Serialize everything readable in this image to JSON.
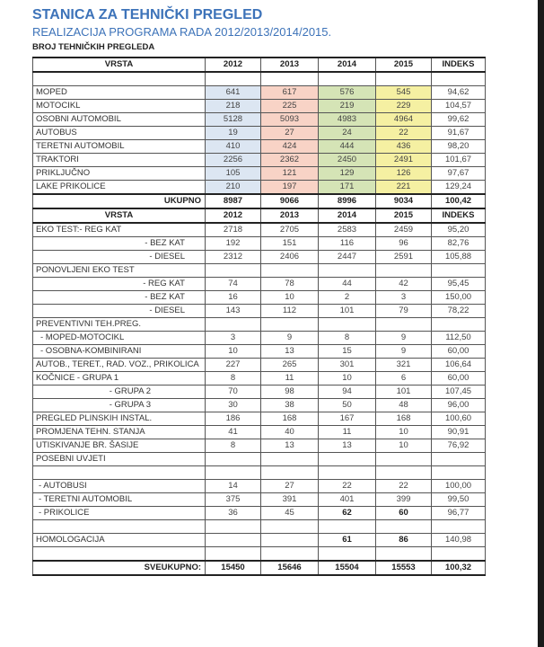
{
  "title": "STANICA ZA TEHNIČKI PREGLED",
  "subtitle": "REALIZACIJA PROGRAMA RADA 2012/2013/2014/2015.",
  "section": "BROJ TEHNIČKIH PREGLEDA",
  "table": {
    "rows": [
      [
        "VRSTA",
        "2012",
        "2013",
        "2014",
        "2015",
        "INDEKS"
      ],
      [
        null,
        null,
        null,
        null,
        null,
        null
      ],
      [
        "MOPED",
        "641",
        "617",
        "576",
        "545",
        "94,62"
      ],
      [
        "MOTOCIKL",
        "218",
        "225",
        "219",
        "229",
        "104,57"
      ],
      [
        "OSOBNI AUTOMOBIL",
        "5128",
        "5093",
        "4983",
        "4964",
        "99,62"
      ],
      [
        "AUTOBUS",
        "19",
        "27",
        "24",
        "22",
        "91,67"
      ],
      [
        "TERETNI AUTOMOBIL",
        "410",
        "424",
        "444",
        "436",
        "98,20"
      ],
      [
        "TRAKTORI",
        "2256",
        "2362",
        "2450",
        "2491",
        "101,67"
      ],
      [
        "PRIKLJUČNO",
        "105",
        "121",
        "129",
        "126",
        "97,67"
      ],
      [
        "LAKE PRIKOLICE",
        "210",
        "197",
        "171",
        "221",
        "129,24"
      ],
      [
        "UKUPNO",
        "8987",
        "9066",
        "8996",
        "9034",
        "100,42"
      ],
      [
        "VRSTA",
        "2012",
        "2013",
        "2014",
        "2015",
        "INDEKS"
      ],
      [
        "EKO TEST:- REG KAT",
        "2718",
        "2705",
        "2583",
        "2459",
        "95,20"
      ],
      [
        "- BEZ KAT",
        "192",
        "151",
        "116",
        "96",
        "82,76"
      ],
      [
        "- DIESEL",
        "2312",
        "2406",
        "2447",
        "2591",
        "105,88"
      ],
      [
        "PONOVLJENI EKO TEST",
        null,
        null,
        null,
        null,
        null
      ],
      [
        "- REG KAT",
        "74",
        "78",
        "44",
        "42",
        "95,45"
      ],
      [
        "- BEZ KAT",
        "16",
        "10",
        "2",
        "3",
        "150,00"
      ],
      [
        "- DIESEL",
        "143",
        "112",
        "101",
        "79",
        "78,22"
      ],
      [
        "PREVENTIVNI TEH.PREG.",
        null,
        null,
        null,
        null,
        null
      ],
      [
        "- MOPED-MOTOCIKL",
        "3",
        "9",
        "8",
        "9",
        "112,50"
      ],
      [
        "- OSOBNA-KOMBINIRANI",
        "10",
        "13",
        "15",
        "9",
        "60,00"
      ],
      [
        "AUTOB., TERET., RAD. VOZ., PRIKOLICA",
        "227",
        "265",
        "301",
        "321",
        "106,64"
      ],
      [
        "KOČNICE - GRUPA 1",
        "8",
        "11",
        "10",
        "6",
        "60,00"
      ],
      [
        "- GRUPA 2",
        "70",
        "98",
        "94",
        "101",
        "107,45"
      ],
      [
        "- GRUPA 3",
        "30",
        "38",
        "50",
        "48",
        "96,00"
      ],
      [
        "PREGLED PLINSKIH INSTAL.",
        "186",
        "168",
        "167",
        "168",
        "100,60"
      ],
      [
        "PROMJENA TEHN. STANJA",
        "41",
        "40",
        "11",
        "10",
        "90,91"
      ],
      [
        "UTISKIVANJE BR. ŠASIJE",
        "8",
        "13",
        "13",
        "10",
        "76,92"
      ],
      [
        "POSEBNI UVJETI",
        null,
        null,
        null,
        null,
        null
      ],
      [
        null,
        null,
        null,
        null,
        null,
        null
      ],
      [
        "- AUTOBUSI",
        "14",
        "27",
        "22",
        "22",
        "100,00"
      ],
      [
        "- TERETNI AUTOMOBIL",
        "375",
        "391",
        "401",
        "399",
        "99,50"
      ],
      [
        "- PRIKOLICE",
        "36",
        "45",
        "62",
        "60",
        "96,77"
      ],
      [
        null,
        null,
        null,
        null,
        null,
        null
      ],
      [
        "HOMOLOGACIJA",
        null,
        null,
        "61",
        "86",
        "140,98"
      ],
      [
        null,
        null,
        null,
        null,
        null,
        null
      ],
      [
        "SVEUKUPNO:",
        "15450",
        "15646",
        "15504",
        "15553",
        "100,32"
      ]
    ]
  }
}
